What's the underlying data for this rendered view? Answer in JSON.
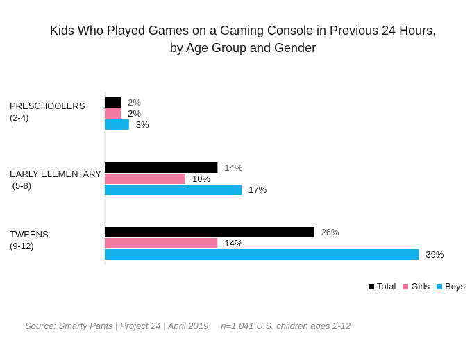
{
  "chart_data": {
    "type": "bar",
    "orientation": "horizontal",
    "title": [
      "Kids Who Played Games on a Gaming Console in Previous 24 Hours,",
      "by Age Group and Gender"
    ],
    "categories": [
      {
        "line1": "PRESCHOOLERS",
        "line2": "(2-4)"
      },
      {
        "line1": "EARLY ELEMENTARY",
        "line2": " (5-8)"
      },
      {
        "line1": "TWEENS",
        "line2": "(9-12)"
      }
    ],
    "series": [
      {
        "name": "Total",
        "color": "#000000",
        "values": [
          2,
          14,
          26
        ],
        "labels": [
          "2%",
          "14%",
          "26%"
        ]
      },
      {
        "name": "Girls",
        "color": "#f07aa0",
        "values": [
          2,
          10,
          14
        ],
        "labels": [
          "2%",
          "10%",
          "14%"
        ]
      },
      {
        "name": "Boys",
        "color": "#13b1ea",
        "values": [
          3,
          17,
          39
        ],
        "labels": [
          "3%",
          "17%",
          "39%"
        ]
      }
    ],
    "xlim": [
      0,
      40
    ],
    "grid": false,
    "legend_position": "bottom-right"
  },
  "source": "Source: Smarty Pants | Project 24 | April 2019     n=1,041 U.S. children ages 2-12"
}
